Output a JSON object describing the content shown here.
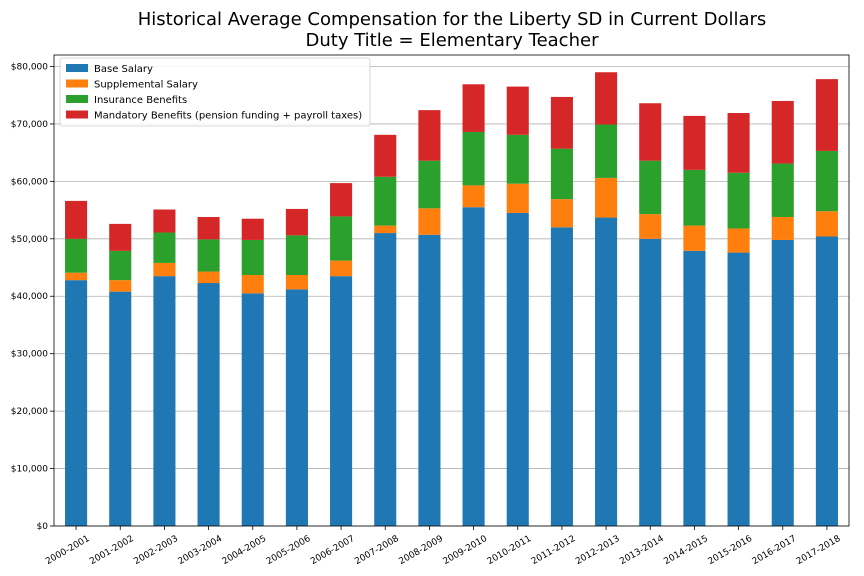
{
  "chart_data": {
    "type": "bar",
    "stacked": true,
    "title": "Historical Average Compensation for the Liberty SD in Current Dollars",
    "subtitle": "Duty Title = Elementary Teacher",
    "xlabel": "",
    "ylabel": "",
    "ylim": [
      0,
      82000
    ],
    "yticks": [
      0,
      10000,
      20000,
      30000,
      40000,
      50000,
      60000,
      70000,
      80000
    ],
    "ytick_labels": [
      "$0",
      "$10,000",
      "$20,000",
      "$30,000",
      "$40,000",
      "$50,000",
      "$60,000",
      "$70,000",
      "$80,000"
    ],
    "grid": "y",
    "legend_position": "top-left",
    "categories": [
      "2000-2001",
      "2001-2002",
      "2002-2003",
      "2003-2004",
      "2004-2005",
      "2005-2006",
      "2006-2007",
      "2007-2008",
      "2008-2009",
      "2009-2010",
      "2010-2011",
      "2011-2012",
      "2012-2013",
      "2013-2014",
      "2014-2015",
      "2015-2016",
      "2016-2017",
      "2017-2018"
    ],
    "series": [
      {
        "name": "Base Salary",
        "color": "#1f77b4",
        "values": [
          42800,
          40800,
          43500,
          42300,
          40500,
          41200,
          43500,
          51000,
          50700,
          55500,
          54500,
          52000,
          53700,
          50000,
          47900,
          47600,
          49800,
          50400
        ]
      },
      {
        "name": "Supplemental Salary",
        "color": "#ff7f0e",
        "values": [
          1300,
          2000,
          2300,
          2000,
          3200,
          2500,
          2700,
          1300,
          4600,
          3800,
          5100,
          4900,
          6900,
          4300,
          4400,
          4200,
          4000,
          4400
        ]
      },
      {
        "name": "Insurance Benefits",
        "color": "#2ca02c",
        "values": [
          5900,
          5100,
          5300,
          5600,
          6100,
          6900,
          7700,
          8500,
          8300,
          9300,
          8500,
          8800,
          9300,
          9300,
          9700,
          9700,
          9300,
          10500
        ]
      },
      {
        "name": "Mandatory Benefits (pension funding + payroll taxes)",
        "color": "#d62728",
        "values": [
          6600,
          4700,
          4000,
          3900,
          3700,
          4600,
          5800,
          7300,
          8800,
          8300,
          8400,
          9000,
          9100,
          10000,
          9400,
          10400,
          10900,
          12500
        ]
      }
    ]
  }
}
